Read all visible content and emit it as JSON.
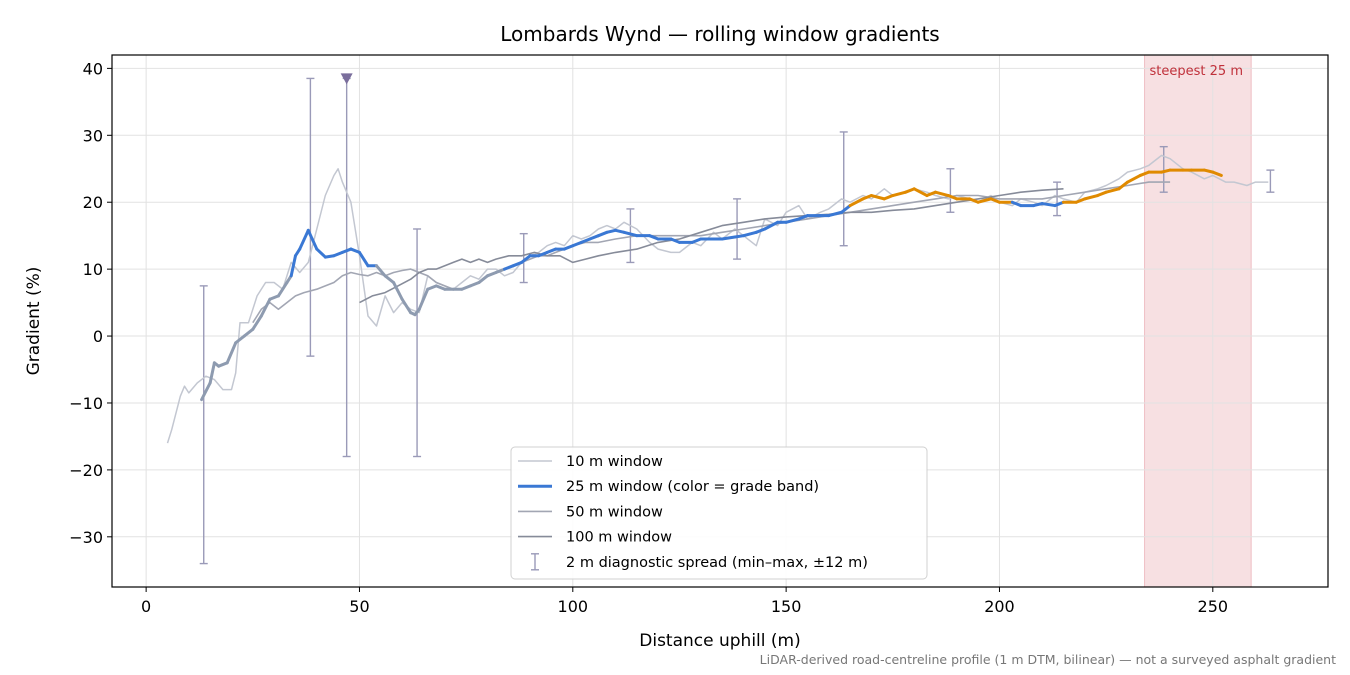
{
  "chart_data": {
    "type": "line",
    "title": "Lombards Wynd — rolling window gradients",
    "xlabel": "Distance uphill (m)",
    "ylabel": "Gradient (%)",
    "xlim": [
      -8,
      277
    ],
    "ylim": [
      -37.5,
      42
    ],
    "xticks": [
      0,
      50,
      100,
      150,
      200,
      250
    ],
    "yticks": [
      -30,
      -20,
      -10,
      0,
      10,
      20,
      30,
      40
    ],
    "xtick_labels": [
      "0",
      "50",
      "100",
      "150",
      "200",
      "250"
    ],
    "ytick_labels": [
      "−30",
      "−20",
      "−10",
      "0",
      "10",
      "20",
      "30",
      "40"
    ],
    "grid": true,
    "legend_position": "lower-center",
    "caption": "LiDAR-derived road-centreline profile (1 m DTM, bilinear) — not a surveyed asphalt gradient",
    "steepest_span": {
      "label": "steepest 25 m",
      "x0": 234,
      "x1": 259,
      "color": "#e8a0a8",
      "label_color": "#c0303a"
    },
    "clipped_marker": {
      "x": 47,
      "y": 38.5,
      "color": "#7a6e9c"
    },
    "series": [
      {
        "name": "10 m window",
        "color": "#c3c7d1",
        "width": 1.5,
        "x": [
          5,
          6,
          8,
          9,
          10,
          12,
          14,
          16,
          18,
          20,
          21,
          22,
          24,
          26,
          28,
          30,
          32,
          34,
          36,
          38,
          40,
          42,
          44,
          45,
          46,
          48,
          50,
          52,
          54,
          56,
          58,
          60,
          62,
          64,
          66,
          68,
          70,
          72,
          74,
          76,
          78,
          80,
          82,
          84,
          86,
          88,
          90,
          92,
          94,
          96,
          98,
          100,
          102,
          104,
          106,
          108,
          110,
          112,
          115,
          118,
          120,
          123,
          125,
          128,
          130,
          133,
          135,
          138,
          140,
          143,
          145,
          148,
          150,
          153,
          155,
          158,
          160,
          163,
          165,
          168,
          170,
          173,
          175,
          178,
          180,
          183,
          185,
          188,
          190,
          193,
          195,
          198,
          200,
          203,
          205,
          208,
          210,
          213,
          215,
          218,
          220,
          223,
          225,
          228,
          230,
          233,
          235,
          238,
          240,
          243,
          245,
          248,
          250,
          253,
          255,
          258,
          260,
          263
        ],
        "y": [
          -16,
          -14,
          -9,
          -7.5,
          -8.5,
          -7,
          -6,
          -6.5,
          -8,
          -8,
          -5.5,
          2,
          2,
          6,
          8,
          8,
          7,
          11,
          9.5,
          11,
          16,
          21,
          24,
          25,
          23,
          20,
          12,
          3,
          1.5,
          6,
          3.5,
          5,
          4,
          3.5,
          9,
          8,
          7.5,
          7,
          8,
          9,
          8.5,
          10,
          10,
          9,
          9.5,
          11,
          12,
          12.5,
          13.5,
          14,
          13.5,
          15,
          14.5,
          15,
          16,
          16.5,
          16,
          17,
          16,
          14,
          13,
          12.5,
          12.5,
          14,
          13.5,
          15.5,
          14.5,
          16,
          15,
          13.5,
          17.5,
          16.5,
          18.5,
          19.5,
          17.5,
          18.5,
          19,
          20.5,
          20,
          21,
          20.5,
          22,
          21,
          21.5,
          22,
          21.5,
          21,
          20.5,
          21,
          20.5,
          20,
          21,
          20,
          19.5,
          20.5,
          20,
          19.5,
          21,
          20.5,
          20,
          21.5,
          22,
          22.5,
          23.5,
          24.5,
          25,
          25.5,
          27,
          26.5,
          25,
          24.5,
          23.5,
          24,
          23,
          23,
          22.5,
          23,
          23
        ]
      },
      {
        "name": "25 m window (color = grade band)",
        "color": "#3a78d4",
        "width": 3,
        "x": [
          13,
          15,
          16,
          17,
          19,
          21,
          23,
          25,
          27,
          29,
          31,
          33,
          34,
          35,
          36,
          38,
          40,
          42,
          44,
          46,
          48,
          50,
          52,
          54,
          56,
          58,
          60,
          62,
          63,
          64,
          66,
          68,
          70,
          72,
          74,
          76,
          78,
          80,
          82,
          84,
          86,
          88,
          90,
          92,
          94,
          96,
          98,
          100,
          102,
          104,
          106,
          108,
          110,
          112,
          115,
          118,
          120,
          123,
          125,
          128,
          130,
          133,
          135,
          138,
          140,
          143,
          145,
          148,
          150,
          153,
          155,
          158,
          160,
          163,
          165,
          168,
          170,
          173,
          175,
          178,
          180,
          183,
          185,
          188,
          190,
          193,
          195,
          198,
          200,
          203,
          205,
          208,
          210,
          213,
          215,
          218,
          220,
          223,
          225,
          228,
          230,
          233,
          235,
          238,
          240,
          243,
          245,
          248,
          250,
          252
        ],
        "y": [
          -9.5,
          -7,
          -4,
          -4.5,
          -4,
          -1,
          0,
          1,
          3,
          5.5,
          6,
          8,
          9,
          12,
          13,
          15.8,
          13,
          11.8,
          12,
          12.5,
          13,
          12.5,
          10.5,
          10.5,
          9,
          8,
          5.5,
          3.5,
          3.2,
          4,
          7,
          7.5,
          7,
          7,
          7,
          7.5,
          8,
          9,
          9.5,
          10,
          10.5,
          11,
          12,
          12,
          12.5,
          13,
          13,
          13.5,
          14,
          14.5,
          15,
          15.5,
          15.8,
          15.5,
          15,
          15,
          14.5,
          14.5,
          14,
          14,
          14.5,
          14.5,
          14.5,
          14.8,
          15,
          15.5,
          16,
          17,
          17,
          17.5,
          18,
          18,
          18,
          18.5,
          19.5,
          20.5,
          21,
          20.5,
          21,
          21.5,
          22,
          21,
          21.5,
          21,
          20.5,
          20.5,
          20,
          20.5,
          20,
          20,
          19.5,
          19.5,
          19.8,
          19.5,
          20,
          20,
          20.5,
          21,
          21.5,
          22,
          23,
          24,
          24.5,
          24.5,
          24.8,
          24.8,
          24.8,
          24.8,
          24.5,
          24
        ]
      },
      {
        "name": "50 m window",
        "color": "#a2a6b3",
        "width": 1.6,
        "x": [
          25,
          27,
          29,
          31,
          33,
          35,
          37,
          40,
          42,
          44,
          46,
          48,
          50,
          52,
          54,
          56,
          58,
          60,
          62,
          64,
          66,
          68,
          70,
          72,
          74,
          76,
          78,
          80,
          82,
          84,
          86,
          88,
          90,
          92,
          94,
          96,
          98,
          100,
          103,
          106,
          110,
          115,
          120,
          125,
          130,
          135,
          140,
          145,
          150,
          155,
          160,
          165,
          170,
          175,
          180,
          185,
          190,
          195,
          200,
          205,
          210,
          215,
          220,
          225,
          230,
          235,
          240
        ],
        "y": [
          2,
          4,
          5,
          4,
          5,
          6,
          6.5,
          7,
          7.5,
          8,
          9,
          9.5,
          9.2,
          9,
          9.5,
          9,
          9.5,
          9.8,
          10,
          9.5,
          9,
          8,
          7.5,
          7,
          7,
          7.5,
          8,
          9,
          9.5,
          10,
          10.5,
          11,
          11.5,
          12,
          12,
          12.5,
          13,
          13.5,
          14,
          14,
          14.5,
          15,
          15,
          15,
          15,
          15.5,
          16,
          16.5,
          17,
          17.5,
          18,
          18.5,
          19,
          19.5,
          20,
          20.5,
          21,
          21,
          20.5,
          20.5,
          20.5,
          21,
          21.5,
          22,
          22.5,
          23,
          23
        ]
      },
      {
        "name": "100 m window",
        "color": "#868b99",
        "width": 1.6,
        "x": [
          50,
          53,
          56,
          59,
          62,
          64,
          66,
          68,
          70,
          72,
          74,
          76,
          78,
          80,
          82,
          85,
          88,
          91,
          94,
          97,
          100,
          103,
          106,
          110,
          115,
          120,
          125,
          130,
          135,
          140,
          145,
          150,
          155,
          160,
          165,
          170,
          175,
          180,
          185,
          190,
          195,
          200,
          205,
          210,
          215
        ],
        "y": [
          5,
          6,
          6.5,
          7.5,
          8.5,
          9.5,
          10,
          10,
          10.5,
          11,
          11.5,
          11,
          11.5,
          11,
          11.5,
          12,
          12,
          12.5,
          12,
          12,
          11,
          11.5,
          12,
          12.5,
          13,
          14,
          14.5,
          15.5,
          16.5,
          17,
          17.5,
          17.8,
          18,
          18.2,
          18.5,
          18.5,
          18.8,
          19,
          19.5,
          20,
          20.5,
          21,
          21.5,
          21.8,
          22
        ]
      }
    ],
    "error_bars": {
      "name": "2 m diagnostic spread (min–max, ±12 m)",
      "color": "#9a9ab8",
      "points": [
        {
          "x": 13.5,
          "low": -34,
          "high": 7.5
        },
        {
          "x": 38.5,
          "low": -3,
          "high": 38.5
        },
        {
          "x": 47,
          "low": -18,
          "high": 38.5
        },
        {
          "x": 63.5,
          "low": -18,
          "high": 16
        },
        {
          "x": 88.5,
          "low": 8,
          "high": 15.3
        },
        {
          "x": 113.5,
          "low": 11,
          "high": 19
        },
        {
          "x": 138.5,
          "low": 11.5,
          "high": 20.5
        },
        {
          "x": 163.5,
          "low": 13.5,
          "high": 30.5
        },
        {
          "x": 188.5,
          "low": 18.5,
          "high": 25
        },
        {
          "x": 213.5,
          "low": 18,
          "high": 23
        },
        {
          "x": 238.5,
          "low": 21.5,
          "high": 28.3
        },
        {
          "x": 263.5,
          "low": 21.5,
          "high": 24.8
        }
      ]
    }
  }
}
